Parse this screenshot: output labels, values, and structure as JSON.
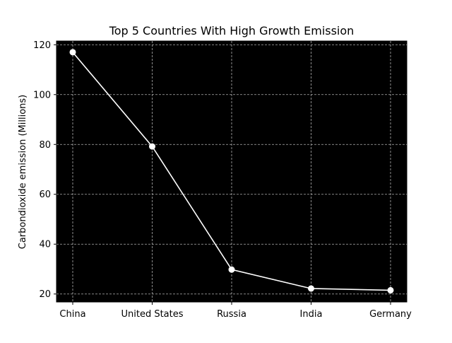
{
  "chart_data": {
    "type": "line",
    "title": "Top 5 Countries With High Growth Emission",
    "xlabel": "",
    "ylabel": "Carbondioxide emission (Millions)",
    "categories": [
      "China",
      "United States",
      "Russia",
      "India",
      "Germany"
    ],
    "series": [
      {
        "values": [
          117.0,
          79.2,
          29.8,
          22.2,
          21.5
        ]
      }
    ],
    "ylim": [
      16.8,
      121.5
    ],
    "yticks": [
      20,
      40,
      60,
      80,
      100,
      120
    ],
    "grid": true,
    "plot_background": "#000000",
    "line_color": "#ffffff",
    "marker": "circle"
  }
}
